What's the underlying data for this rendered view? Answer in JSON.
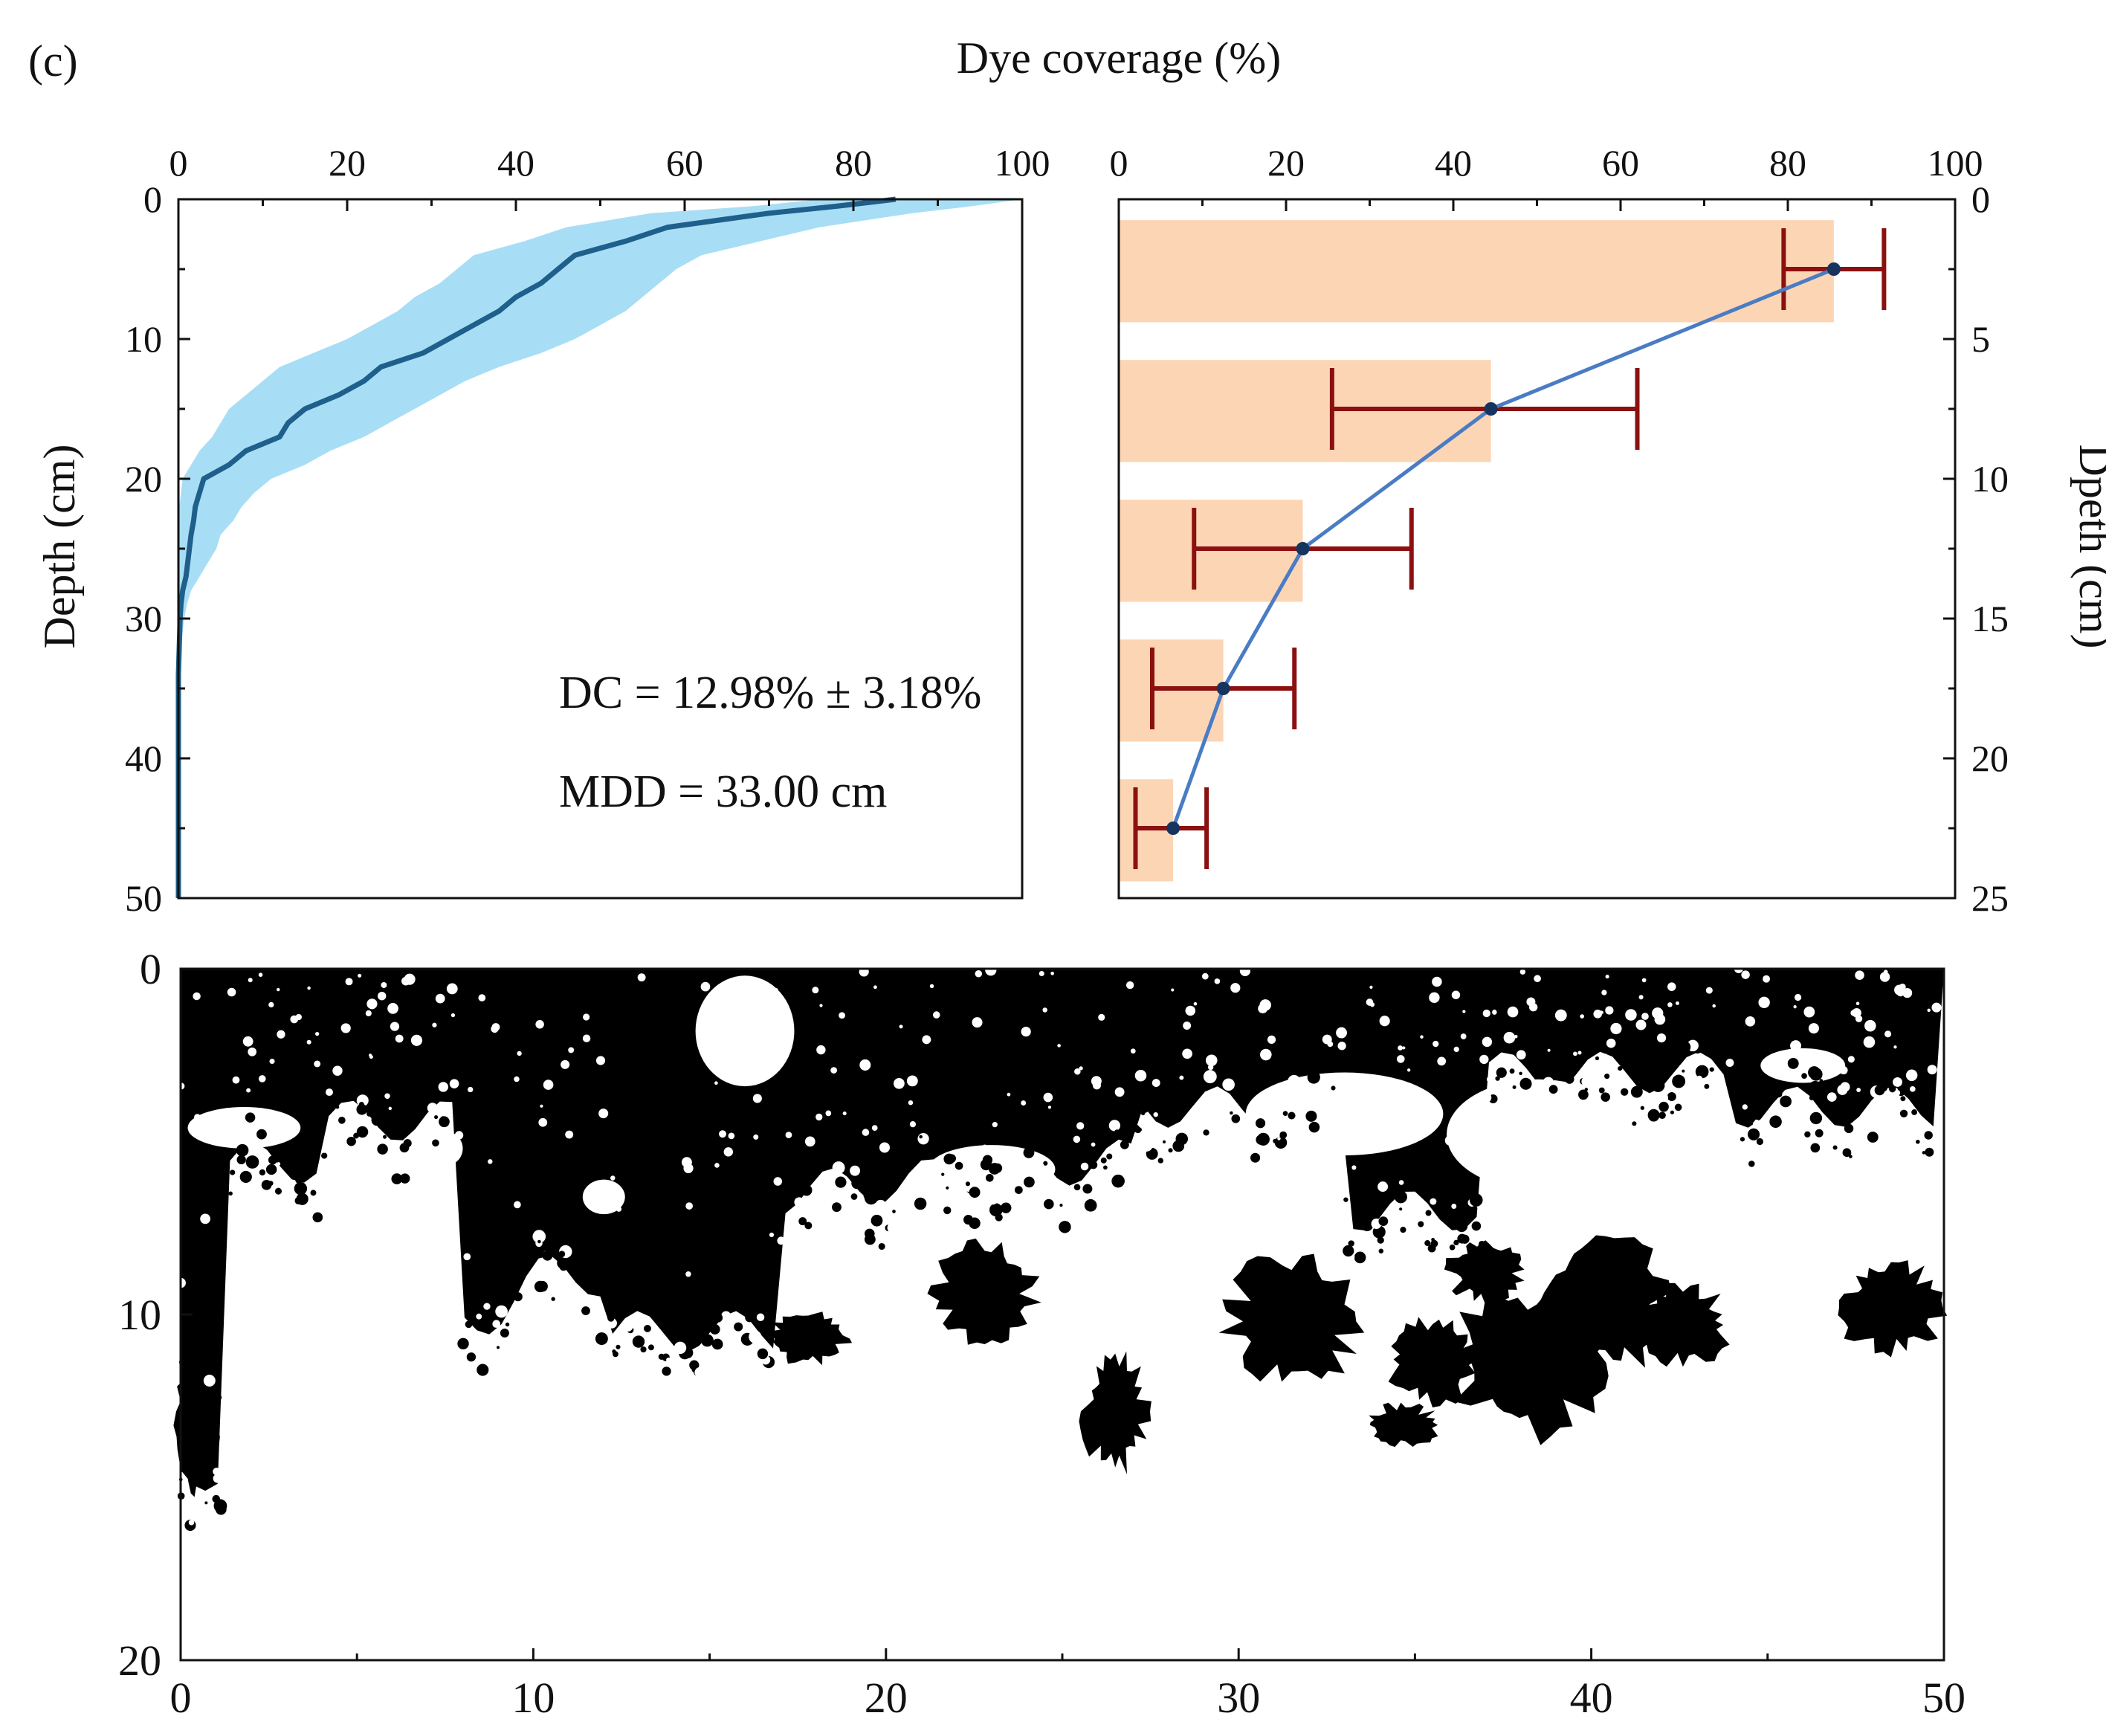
{
  "figure": {
    "panel_label": "(c)",
    "top_title": "Dye coverage (%)"
  },
  "colors": {
    "profile_line": "#1f5f8b",
    "profile_band": "#a8def5",
    "bar_fill": "#fcd5b5",
    "error_bar": "#8b1010",
    "mean_line": "#4a7cc4",
    "mean_marker": "#17345e",
    "stain": "#000000"
  },
  "chart_data": [
    {
      "type": "line",
      "name": "depth-profile",
      "xlabel": "",
      "ylabel": "Depth (cm)",
      "xlim": [
        0,
        100
      ],
      "ylim": [
        0,
        50
      ],
      "x_ticks": [
        "0",
        "20",
        "40",
        "60",
        "80",
        "100"
      ],
      "y_ticks": [
        "0",
        "10",
        "20",
        "30",
        "40",
        "50"
      ],
      "y_inverted": true,
      "x_axis_position": "top",
      "series": [
        {
          "depth": [
            0,
            0.5,
            1,
            2,
            3,
            4,
            5,
            6,
            7,
            8,
            9,
            10,
            11,
            12,
            13,
            14,
            15,
            16,
            17,
            18,
            19,
            20,
            21,
            22,
            23,
            24,
            25,
            26,
            27,
            28,
            29,
            30,
            32,
            34,
            38,
            42,
            46,
            50
          ],
          "mean": [
            85,
            78,
            70,
            58,
            53,
            47,
            45,
            43,
            40,
            38,
            35,
            32,
            29,
            24,
            22,
            19,
            15,
            13,
            12,
            8,
            6,
            3,
            2.5,
            2,
            1.8,
            1.5,
            1.3,
            1.1,
            0.9,
            0.5,
            0.3,
            0.2,
            0.1,
            0,
            0,
            0,
            0,
            0
          ],
          "lower": [
            76,
            68,
            56,
            46,
            41,
            35,
            33,
            31,
            28,
            26,
            23,
            20,
            16,
            12,
            10,
            8,
            6,
            5,
            4,
            2.5,
            1.5,
            0.5,
            0.3,
            0.1,
            0,
            0,
            0,
            0,
            0,
            0,
            0,
            0,
            0,
            0,
            0,
            0,
            0,
            0
          ],
          "upper": [
            100,
            94,
            87,
            76,
            69,
            62,
            59,
            57,
            55,
            53,
            50,
            47,
            43,
            38,
            34,
            31,
            28,
            25,
            22,
            18,
            15,
            11,
            9,
            7.5,
            6.5,
            5,
            4.5,
            3.5,
            2.5,
            1.5,
            1,
            0.7,
            0.3,
            0.1,
            0,
            0,
            0,
            0
          ]
        }
      ],
      "annotations": [
        "DC = 12.98% ± 3.18%",
        "MDD = 33.00 cm"
      ]
    },
    {
      "type": "bar",
      "name": "mean-coverage-by-depth",
      "orientation": "horizontal",
      "xlabel": "",
      "ylabel": "Dpeth (cm)",
      "xlim": [
        0,
        100
      ],
      "ylim": [
        0,
        25
      ],
      "x_ticks": [
        "0",
        "20",
        "40",
        "60",
        "80",
        "100"
      ],
      "y_ticks": [
        "0",
        "5",
        "10",
        "15",
        "20",
        "25"
      ],
      "y_axis_position": "right",
      "y_inverted": true,
      "bars": [
        {
          "depth_from": 0.75,
          "depth_to": 4.4,
          "mean_depth": 2.5,
          "value": 85.5,
          "err_low": 79.5,
          "err_high": 91.5
        },
        {
          "depth_from": 5.75,
          "depth_to": 9.4,
          "mean_depth": 7.5,
          "value": 44.5,
          "err_low": 25.5,
          "err_high": 62
        },
        {
          "depth_from": 10.75,
          "depth_to": 14.4,
          "mean_depth": 12.5,
          "value": 22,
          "err_low": 9,
          "err_high": 35
        },
        {
          "depth_from": 15.75,
          "depth_to": 19.4,
          "mean_depth": 17.5,
          "value": 12.5,
          "err_low": 4,
          "err_high": 21
        },
        {
          "depth_from": 20.75,
          "depth_to": 24.4,
          "mean_depth": 22.5,
          "value": 6.5,
          "err_low": 2,
          "err_high": 10.5
        }
      ]
    },
    {
      "type": "heatmap",
      "name": "binary-dye-stain-image",
      "xlim": [
        0,
        50
      ],
      "ylim": [
        0,
        20
      ],
      "x_ticks": [
        "0",
        "10",
        "20",
        "30",
        "40",
        "50"
      ],
      "y_ticks": [
        "0",
        "10",
        "20"
      ],
      "y_inverted": true
    }
  ]
}
